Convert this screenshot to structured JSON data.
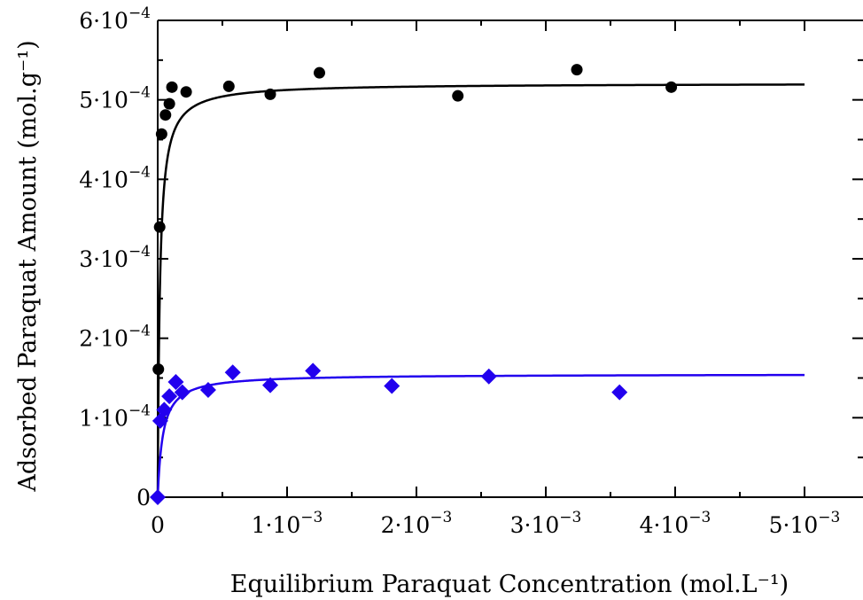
{
  "chart_data": {
    "type": "scatter",
    "xlabel": "Equilibrium Paraquat Concentration (mol.L⁻¹)",
    "ylabel": "Adsorbed Paraquat Amount (mol.g⁻¹)",
    "xlim": [
      0,
      0.005
    ],
    "ylim": [
      0,
      0.0006
    ],
    "x_ticks": [
      {
        "value": 0,
        "label": "0"
      },
      {
        "value": 0.001,
        "label": "1·10",
        "exp": "−3"
      },
      {
        "value": 0.002,
        "label": "2·10",
        "exp": "−3"
      },
      {
        "value": 0.003,
        "label": "3·10",
        "exp": "−3"
      },
      {
        "value": 0.004,
        "label": "4·10",
        "exp": "−3"
      },
      {
        "value": 0.005,
        "label": "5·10",
        "exp": "−3"
      }
    ],
    "y_ticks": [
      {
        "value": 0,
        "label": "0"
      },
      {
        "value": 0.0001,
        "label": "1·10",
        "exp": "−4"
      },
      {
        "value": 0.0002,
        "label": "2·10",
        "exp": "−4"
      },
      {
        "value": 0.0003,
        "label": "3·10",
        "exp": "−4"
      },
      {
        "value": 0.0004,
        "label": "4·10",
        "exp": "−4"
      },
      {
        "value": 0.0005,
        "label": "5·10",
        "exp": "−4"
      },
      {
        "value": 0.0006,
        "label": "6·10",
        "exp": "−4"
      }
    ],
    "grid": false,
    "series": [
      {
        "color": "#000000",
        "marker": "circle",
        "points": [
          [
            5e-06,
            0.000161
          ],
          [
            1.5e-05,
            0.00034
          ],
          [
            3e-05,
            0.000457
          ],
          [
            6e-05,
            0.000481
          ],
          [
            9e-05,
            0.000495
          ],
          [
            0.00011,
            0.000516
          ],
          [
            0.00022,
            0.00051
          ],
          [
            0.00055,
            0.000517
          ],
          [
            0.00087,
            0.000507
          ],
          [
            0.00125,
            0.000534
          ],
          [
            0.00232,
            0.000505
          ],
          [
            0.00324,
            0.000538
          ],
          [
            0.00397,
            0.000516
          ]
        ],
        "fit": {
          "model": "langmuir",
          "qmax": 0.000521,
          "K": 60000,
          "x_max": 0.005
        }
      },
      {
        "color": "#2200ee",
        "marker": "diamond",
        "points": [
          [
            0.0,
            0.0
          ],
          [
            2e-05,
            9.6e-05
          ],
          [
            5e-05,
            0.00011
          ],
          [
            9e-05,
            0.000127
          ],
          [
            0.00014,
            0.000145
          ],
          [
            0.00019,
            0.000132
          ],
          [
            0.00039,
            0.000135
          ],
          [
            0.00058,
            0.000157
          ],
          [
            0.00087,
            0.000141
          ],
          [
            0.0012,
            0.000159
          ],
          [
            0.00181,
            0.00014
          ],
          [
            0.00256,
            0.000152
          ],
          [
            0.00357,
            0.000132
          ]
        ],
        "fit": {
          "model": "langmuir",
          "qmax": 0.000155,
          "K": 25000,
          "x_max": 0.005
        }
      }
    ]
  }
}
